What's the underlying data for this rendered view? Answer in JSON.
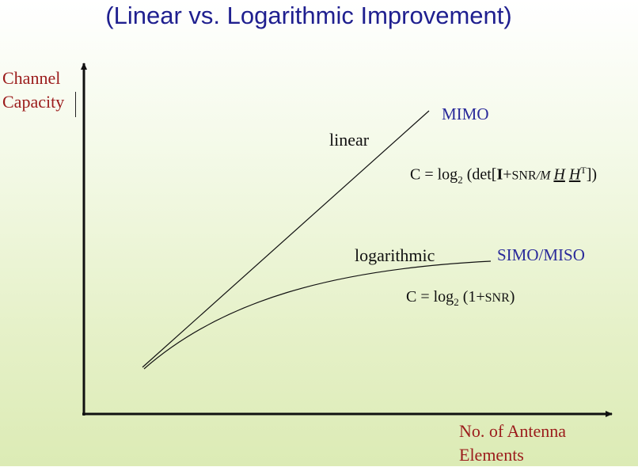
{
  "slide": {
    "title": "(Linear vs. Logarithmic Improvement)"
  },
  "colors": {
    "title": "#1f1f8f",
    "axis_label": "#9b1b1b",
    "series_label": "#2a2a9a",
    "curve": "#111111"
  },
  "chart_data": {
    "type": "line",
    "ylabel": "Channel Capacity",
    "xlabel": "No. of Antenna Elements",
    "ticks": "none",
    "grid": false,
    "series": [
      {
        "name": "MIMO",
        "curve_label": "linear",
        "shape": "linear",
        "formula": {
          "lhs": "C = log",
          "sub": "2",
          "mid": " (det[",
          "bold_i": "I",
          "plus": "+",
          "snr": "SNR",
          "slash_m": "/M ",
          "h1": "H",
          "space": " ",
          "h2": "H",
          "sup": "T",
          "end": "])"
        }
      },
      {
        "name": "SIMO/MISO",
        "curve_label": "logarithmic",
        "shape": "logarithmic",
        "formula": {
          "lhs": "C = log",
          "sub": "2",
          "mid": " (1+",
          "snr": "SNR",
          "end": ")"
        }
      }
    ]
  }
}
